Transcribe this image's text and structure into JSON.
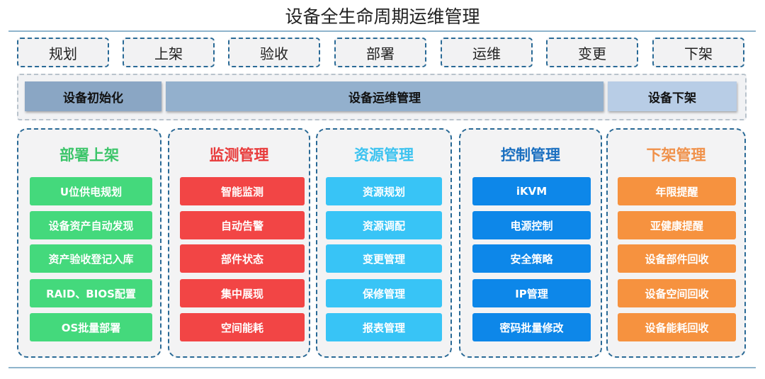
{
  "title": "设备全生命周期运维管理",
  "stages": [
    "规划",
    "上架",
    "验收",
    "部署",
    "运维",
    "变更",
    "下架"
  ],
  "phases": [
    {
      "label": "设备初始化",
      "color": "#8aa6c4"
    },
    {
      "label": "设备运维管理",
      "color": "#93b0cd"
    },
    {
      "label": "设备下架",
      "color": "#b8cde6"
    }
  ],
  "columns": [
    {
      "title": "部署上架",
      "title_color": "#3cc56a",
      "item_color": "#44d97c",
      "items": [
        "U位供电规划",
        "设备资产自动发现",
        "资产验收登记入库",
        "RAID、BIOS配置",
        "OS批量部署"
      ]
    },
    {
      "title": "监测管理",
      "title_color": "#e83a3a",
      "item_color": "#f24545",
      "items": [
        "智能监测",
        "自动告警",
        "部件状态",
        "集中展现",
        "空间能耗"
      ]
    },
    {
      "title": "资源管理",
      "title_color": "#3cc3f0",
      "item_color": "#38c4f6",
      "items": [
        "资源规划",
        "资源调配",
        "变更管理",
        "保修管理",
        "报表管理"
      ]
    },
    {
      "title": "控制管理",
      "title_color": "#1a6fc0",
      "item_color": "#0d87e9",
      "items": [
        "iKVM",
        "电源控制",
        "安全策略",
        "IP管理",
        "密码批量修改"
      ]
    },
    {
      "title": "下架管理",
      "title_color": "#f0914a",
      "item_color": "#f6923f",
      "items": [
        "年限提醒",
        "亚健康提醒",
        "设备部件回收",
        "设备空间回收",
        "设备能耗回收"
      ]
    }
  ]
}
